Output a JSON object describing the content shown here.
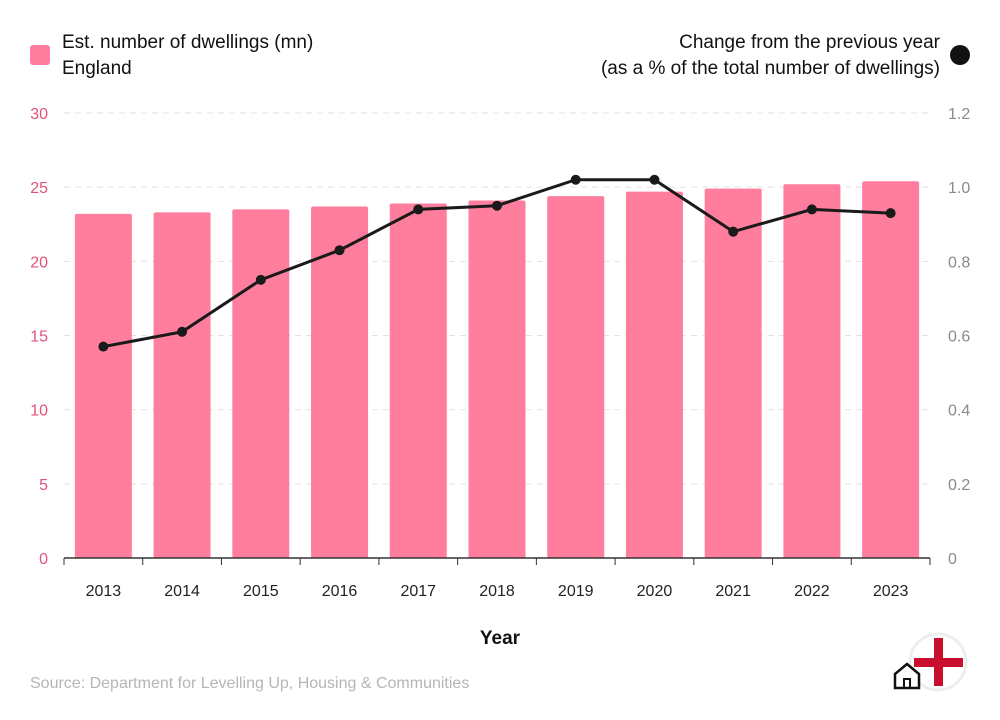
{
  "chart_data": {
    "type": "bar",
    "categories": [
      "2013",
      "2014",
      "2015",
      "2016",
      "2017",
      "2018",
      "2019",
      "2020",
      "2021",
      "2022",
      "2023"
    ],
    "series": [
      {
        "name": "Est. number of dwellings (mn)",
        "axis": "left",
        "type": "bar",
        "color": "#ff7e9d",
        "values": [
          23.2,
          23.3,
          23.5,
          23.7,
          23.9,
          24.1,
          24.4,
          24.7,
          24.9,
          25.2,
          25.4
        ]
      },
      {
        "name": "Change from the previous year (as a % of the total number of dwellings)",
        "axis": "right",
        "type": "line",
        "color": "#1a1a1a",
        "values": [
          0.57,
          0.61,
          0.75,
          0.83,
          0.94,
          0.95,
          1.02,
          1.02,
          0.88,
          0.94,
          0.93
        ]
      }
    ],
    "legend_left": {
      "line1": "Est. number of dwellings (mn)",
      "line2": "England"
    },
    "legend_right": {
      "line1": "Change from the previous year",
      "line2": "(as a % of the total number of dwellings)"
    },
    "xlabel": "Year",
    "ylim_left": [
      0,
      30
    ],
    "yticks_left": [
      "0",
      "5",
      "10",
      "15",
      "20",
      "25",
      "30"
    ],
    "ylim_right": [
      0,
      1.2
    ],
    "yticks_right": [
      "0",
      "0.2",
      "0.4",
      "0.6",
      "0.8",
      "1.0",
      "1.2"
    ],
    "grid": true,
    "left_axis_color": "#e0527a",
    "right_axis_color": "#8a8a8a"
  },
  "source": "Source: Department for Levelling Up, Housing & Communities",
  "logo": {
    "icon": "house-england-flag-icon"
  }
}
